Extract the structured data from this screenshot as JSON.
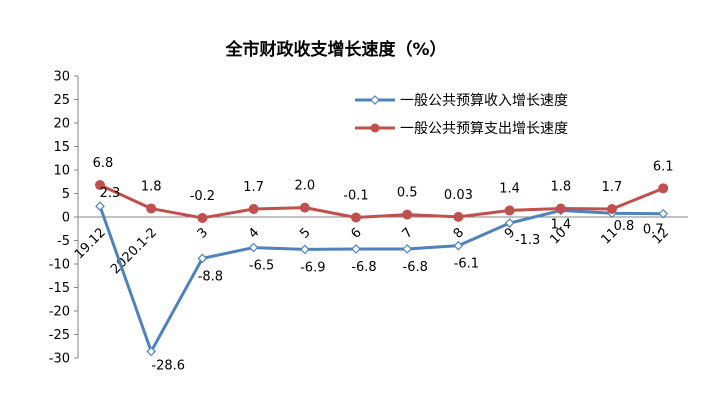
{
  "chart_data": {
    "type": "line",
    "title": "全市财政收支增长速度（%）",
    "categories": [
      "19.12",
      "2020.1-2",
      "3",
      "4",
      "5",
      "6",
      "7",
      "8",
      "9",
      "10",
      "11",
      "12"
    ],
    "ylim": [
      -30,
      30
    ],
    "yticks": [
      30,
      25,
      20,
      15,
      10,
      5,
      0,
      -5,
      -10,
      -15,
      -20,
      -25,
      -30
    ],
    "grid": false,
    "legend_position": "top-right",
    "series": [
      {
        "name": "一般公共预算收入增长速度",
        "color": "#4f81bd",
        "marker": "diamond",
        "values": [
          2.3,
          -28.6,
          -8.8,
          -6.5,
          -6.9,
          -6.8,
          -6.8,
          -6.1,
          -1.3,
          1.4,
          0.8,
          0.7
        ],
        "labels": [
          "2.3",
          "-28.6",
          "-8.8",
          "-6.5",
          "-6.9",
          "-6.8",
          "-6.8",
          "-6.1",
          "-1.3",
          "1.4",
          "0.8",
          "0.7"
        ]
      },
      {
        "name": "一般公共预算支出增长速度",
        "color": "#c0504d",
        "marker": "circle",
        "values": [
          6.8,
          1.8,
          -0.2,
          1.7,
          2.0,
          -0.1,
          0.5,
          0.03,
          1.4,
          1.8,
          1.7,
          6.1
        ],
        "labels": [
          "6.8",
          "1.8",
          "-0.2",
          "1.7",
          "2.0",
          "-0.1",
          "0.5",
          "0.03",
          "1.4",
          "1.8",
          "1.7",
          "6.1"
        ]
      }
    ]
  }
}
